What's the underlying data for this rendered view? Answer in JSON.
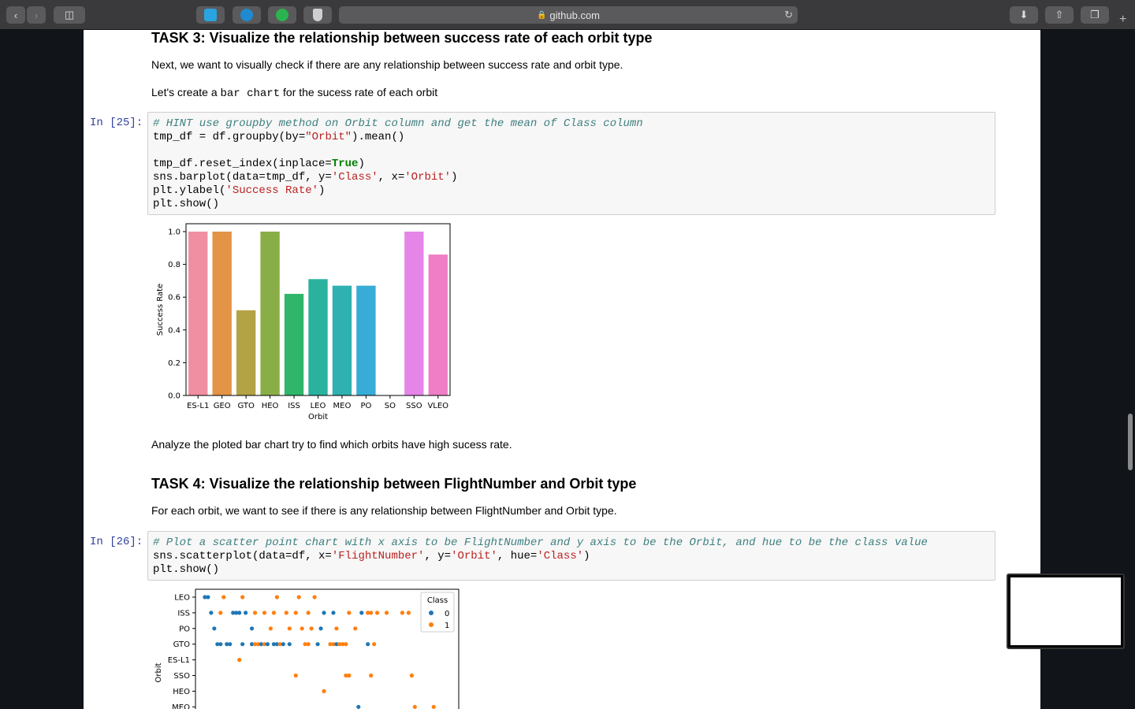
{
  "browser": {
    "url": "github.com",
    "icons": [
      "back-icon",
      "forward-icon",
      "sidebar-icon",
      "extension-icon",
      "download-icon",
      "share-icon",
      "tabs-icon",
      "new-tab-icon"
    ]
  },
  "task3": {
    "heading": "TASK 3: Visualize the relationship between success rate of each orbit type",
    "para1": "Next, we want to visually check if there are any relationship between success rate and orbit type.",
    "para2_pre": "Let's create a ",
    "para2_code": "bar chart",
    "para2_post": " for the sucess rate of each orbit"
  },
  "cell25": {
    "prompt": "In [25]:",
    "line1": "# HINT use groupby method on Orbit column and get the mean of Class column",
    "line2a": "tmp_df = df.groupby(by=",
    "line2s": "\"Orbit\"",
    "line2b": ").mean()",
    "line4a": "tmp_df.reset_index(inplace=",
    "line4k": "True",
    "line4b": ")",
    "line5a": "sns.barplot(data=tmp_df, y=",
    "line5s1": "'Class'",
    "line5b": ", x=",
    "line5s2": "'Orbit'",
    "line5c": ")",
    "line6a": "plt.ylabel(",
    "line6s": "'Success Rate'",
    "line6b": ")",
    "line7": "plt.show()"
  },
  "analyze_text": "Analyze the ploted bar chart try to find which orbits have high sucess rate.",
  "task4": {
    "heading": "TASK 4: Visualize the relationship between FlightNumber and Orbit type",
    "para": "For each orbit, we want to see if there is any relationship between FlightNumber and Orbit type."
  },
  "cell26": {
    "prompt": "In [26]:",
    "line1": "# Plot a scatter point chart with x axis to be FlightNumber and y axis to be the Orbit, and hue to be the class value",
    "line2a": "sns.scatterplot(data=df, x=",
    "line2s1": "'FlightNumber'",
    "line2b": ", y=",
    "line2s2": "'Orbit'",
    "line2c": ", hue=",
    "line2s3": "'Class'",
    "line2d": ")",
    "line3": "plt.show()"
  },
  "chart_data": [
    {
      "type": "bar",
      "categories": [
        "ES-L1",
        "GEO",
        "GTO",
        "HEO",
        "ISS",
        "LEO",
        "MEO",
        "PO",
        "SO",
        "SSO",
        "VLEO"
      ],
      "values": [
        1.0,
        1.0,
        0.52,
        1.0,
        0.62,
        0.71,
        0.67,
        0.67,
        0.0,
        1.0,
        0.86
      ],
      "colors": [
        "#f08fa1",
        "#e39446",
        "#b3a344",
        "#8aae47",
        "#2fb66a",
        "#2ab29e",
        "#2fb1b1",
        "#36acd6",
        "#9b9cf0",
        "#e585e8",
        "#f07ec6"
      ],
      "xlabel": "Orbit",
      "ylabel": "Success Rate",
      "ylim": [
        0,
        1.0
      ],
      "yticks": [
        "0.0",
        "0.2",
        "0.4",
        "0.6",
        "0.8",
        "1.0"
      ]
    },
    {
      "type": "scatter",
      "xlabel": "",
      "ylabel": "Orbit",
      "categories": [
        "LEO",
        "ISS",
        "PO",
        "GTO",
        "ES-L1",
        "SSO",
        "HEO",
        "MEO"
      ],
      "legend_title": "Class",
      "legend": [
        "0",
        "1"
      ],
      "colors": [
        "#1f77b4",
        "#ff7f0e"
      ],
      "points": [
        {
          "x": 1,
          "orbit": "LEO",
          "class": 0
        },
        {
          "x": 2,
          "orbit": "LEO",
          "class": 0
        },
        {
          "x": 7,
          "orbit": "LEO",
          "class": 1
        },
        {
          "x": 13,
          "orbit": "LEO",
          "class": 1
        },
        {
          "x": 24,
          "orbit": "LEO",
          "class": 1
        },
        {
          "x": 31,
          "orbit": "LEO",
          "class": 1
        },
        {
          "x": 36,
          "orbit": "LEO",
          "class": 1
        },
        {
          "x": 3,
          "orbit": "ISS",
          "class": 0
        },
        {
          "x": 6,
          "orbit": "ISS",
          "class": 1
        },
        {
          "x": 10,
          "orbit": "ISS",
          "class": 0
        },
        {
          "x": 11,
          "orbit": "ISS",
          "class": 0
        },
        {
          "x": 12,
          "orbit": "ISS",
          "class": 0
        },
        {
          "x": 14,
          "orbit": "ISS",
          "class": 0
        },
        {
          "x": 17,
          "orbit": "ISS",
          "class": 1
        },
        {
          "x": 20,
          "orbit": "ISS",
          "class": 1
        },
        {
          "x": 23,
          "orbit": "ISS",
          "class": 1
        },
        {
          "x": 27,
          "orbit": "ISS",
          "class": 1
        },
        {
          "x": 30,
          "orbit": "ISS",
          "class": 1
        },
        {
          "x": 34,
          "orbit": "ISS",
          "class": 1
        },
        {
          "x": 39,
          "orbit": "ISS",
          "class": 0
        },
        {
          "x": 42,
          "orbit": "ISS",
          "class": 0
        },
        {
          "x": 47,
          "orbit": "ISS",
          "class": 1
        },
        {
          "x": 51,
          "orbit": "ISS",
          "class": 0
        },
        {
          "x": 53,
          "orbit": "ISS",
          "class": 1
        },
        {
          "x": 54,
          "orbit": "ISS",
          "class": 1
        },
        {
          "x": 56,
          "orbit": "ISS",
          "class": 1
        },
        {
          "x": 59,
          "orbit": "ISS",
          "class": 1
        },
        {
          "x": 64,
          "orbit": "ISS",
          "class": 1
        },
        {
          "x": 66,
          "orbit": "ISS",
          "class": 1
        },
        {
          "x": 4,
          "orbit": "PO",
          "class": 0
        },
        {
          "x": 16,
          "orbit": "PO",
          "class": 0
        },
        {
          "x": 22,
          "orbit": "PO",
          "class": 1
        },
        {
          "x": 28,
          "orbit": "PO",
          "class": 1
        },
        {
          "x": 32,
          "orbit": "PO",
          "class": 1
        },
        {
          "x": 35,
          "orbit": "PO",
          "class": 1
        },
        {
          "x": 38,
          "orbit": "PO",
          "class": 0
        },
        {
          "x": 43,
          "orbit": "PO",
          "class": 1
        },
        {
          "x": 49,
          "orbit": "PO",
          "class": 1
        },
        {
          "x": 5,
          "orbit": "GTO",
          "class": 0
        },
        {
          "x": 6,
          "orbit": "GTO",
          "class": 0
        },
        {
          "x": 8,
          "orbit": "GTO",
          "class": 0
        },
        {
          "x": 9,
          "orbit": "GTO",
          "class": 0
        },
        {
          "x": 13,
          "orbit": "GTO",
          "class": 0
        },
        {
          "x": 16,
          "orbit": "GTO",
          "class": 0
        },
        {
          "x": 17,
          "orbit": "GTO",
          "class": 1
        },
        {
          "x": 18,
          "orbit": "GTO",
          "class": 1
        },
        {
          "x": 19,
          "orbit": "GTO",
          "class": 0
        },
        {
          "x": 20,
          "orbit": "GTO",
          "class": 1
        },
        {
          "x": 21,
          "orbit": "GTO",
          "class": 0
        },
        {
          "x": 23,
          "orbit": "GTO",
          "class": 0
        },
        {
          "x": 24,
          "orbit": "GTO",
          "class": 0
        },
        {
          "x": 25,
          "orbit": "GTO",
          "class": 1
        },
        {
          "x": 26,
          "orbit": "GTO",
          "class": 0
        },
        {
          "x": 28,
          "orbit": "GTO",
          "class": 0
        },
        {
          "x": 33,
          "orbit": "GTO",
          "class": 1
        },
        {
          "x": 34,
          "orbit": "GTO",
          "class": 1
        },
        {
          "x": 37,
          "orbit": "GTO",
          "class": 0
        },
        {
          "x": 41,
          "orbit": "GTO",
          "class": 1
        },
        {
          "x": 42,
          "orbit": "GTO",
          "class": 1
        },
        {
          "x": 43,
          "orbit": "GTO",
          "class": 0
        },
        {
          "x": 44,
          "orbit": "GTO",
          "class": 1
        },
        {
          "x": 45,
          "orbit": "GTO",
          "class": 1
        },
        {
          "x": 46,
          "orbit": "GTO",
          "class": 1
        },
        {
          "x": 53,
          "orbit": "GTO",
          "class": 0
        },
        {
          "x": 55,
          "orbit": "GTO",
          "class": 1
        },
        {
          "x": 12,
          "orbit": "ES-L1",
          "class": 1
        },
        {
          "x": 30,
          "orbit": "SSO",
          "class": 1
        },
        {
          "x": 46,
          "orbit": "SSO",
          "class": 1
        },
        {
          "x": 47,
          "orbit": "SSO",
          "class": 1
        },
        {
          "x": 54,
          "orbit": "SSO",
          "class": 1
        },
        {
          "x": 67,
          "orbit": "SSO",
          "class": 1
        },
        {
          "x": 39,
          "orbit": "HEO",
          "class": 1
        },
        {
          "x": 50,
          "orbit": "MEO",
          "class": 0
        },
        {
          "x": 68,
          "orbit": "MEO",
          "class": 1
        },
        {
          "x": 74,
          "orbit": "MEO",
          "class": 1
        }
      ],
      "xlim": [
        -2,
        82
      ]
    }
  ]
}
